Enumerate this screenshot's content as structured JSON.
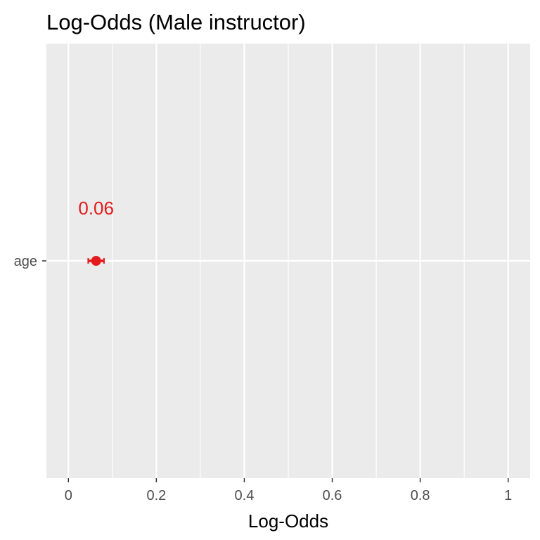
{
  "chart_data": {
    "type": "scatter",
    "title": "Log-Odds (Male instructor)",
    "xlabel": "Log-Odds",
    "ylabel": "",
    "xlim": [
      -0.05,
      1.05
    ],
    "x_ticks": [
      0,
      0.2,
      0.4,
      0.6,
      0.8,
      1
    ],
    "x_tick_labels": [
      "0",
      "0.2",
      "0.4",
      "0.6",
      "0.8",
      "1"
    ],
    "categories": [
      "age"
    ],
    "grid": true,
    "legend": "none",
    "points": [
      {
        "category": "age",
        "value": 0.063,
        "ci_low": 0.045,
        "ci_high": 0.081,
        "label": "0.06",
        "color": "#e41a1c"
      }
    ],
    "colors": {
      "panel_background": "#ebebeb",
      "grid": "#ffffff",
      "point": "#e41a1c",
      "tick_text": "#4d4d4d",
      "tick_mark": "#333333"
    }
  }
}
